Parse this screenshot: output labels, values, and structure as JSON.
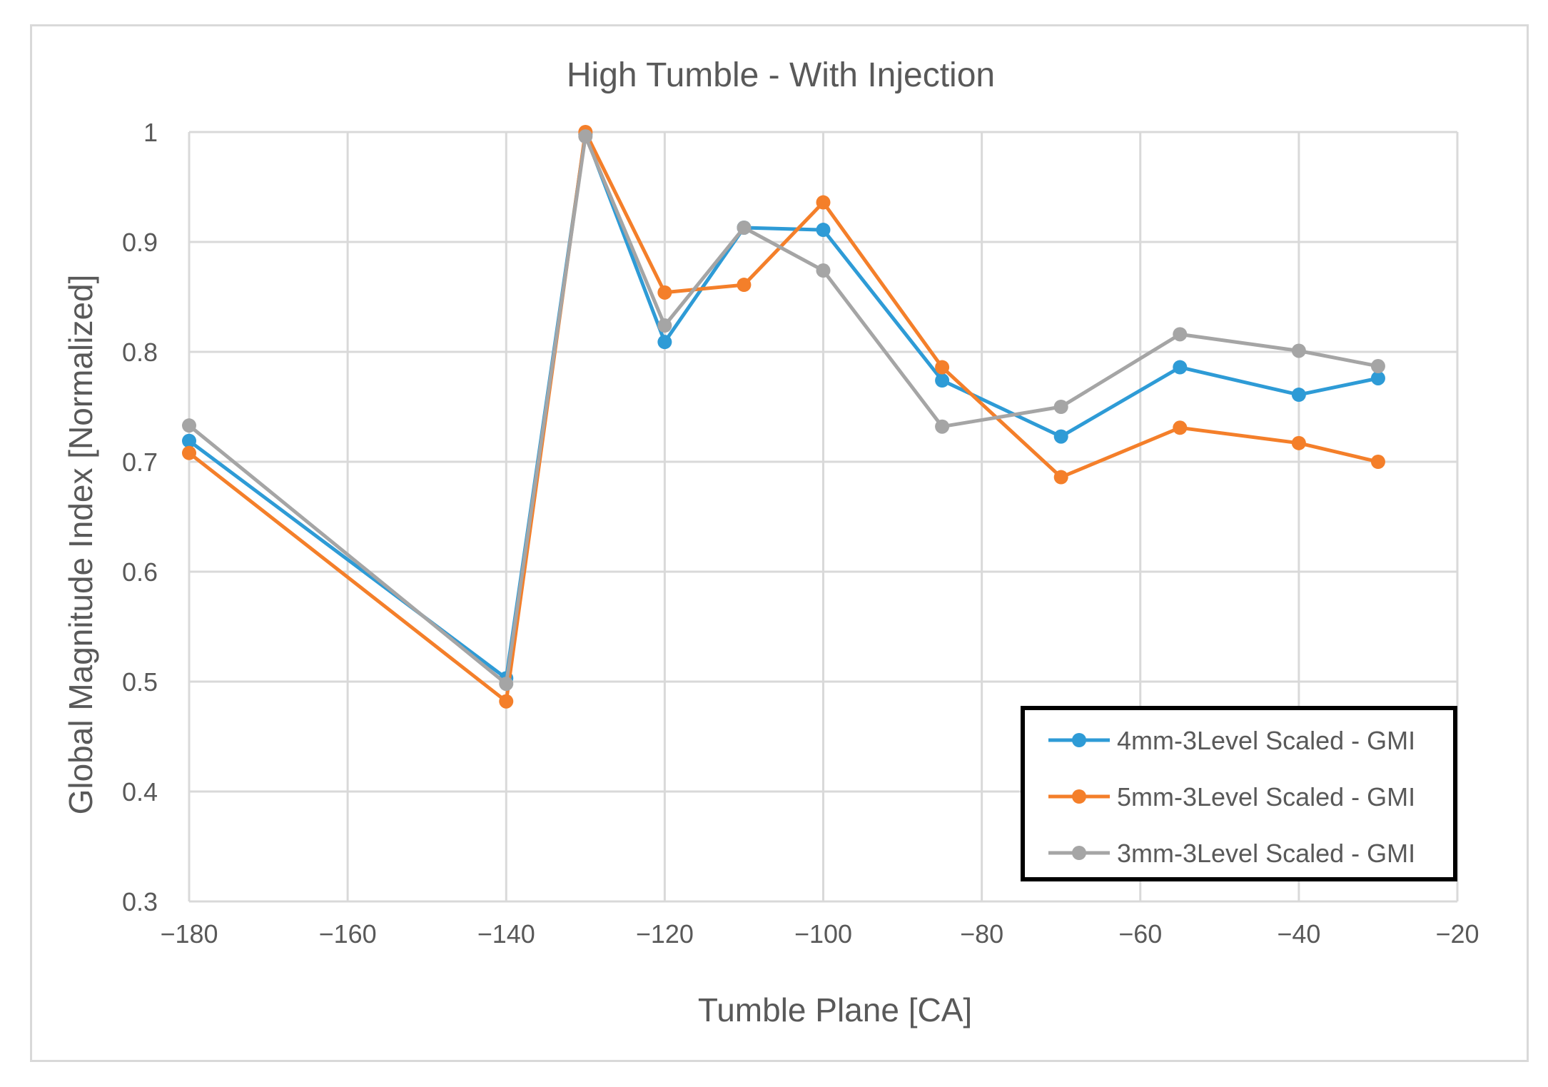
{
  "chart_data": {
    "type": "line",
    "title": "High Tumble - With Injection",
    "xlabel": "Tumble Plane [CA]",
    "ylabel": "Global Magnitude Index [Normalized]",
    "xlim": [
      -180,
      -20
    ],
    "ylim": [
      0.3,
      1.0
    ],
    "x_ticks": [
      -180,
      -160,
      -140,
      -120,
      -100,
      -80,
      -60,
      -40,
      -20
    ],
    "x_tick_labels": [
      "−180",
      "−160",
      "−140",
      "−120",
      "−100",
      "−80",
      "−60",
      "−40",
      "−20"
    ],
    "y_ticks": [
      0.3,
      0.4,
      0.5,
      0.6,
      0.7,
      0.8,
      0.9,
      1.0
    ],
    "y_tick_labels": [
      "0.3",
      "0.4",
      "0.5",
      "0.6",
      "0.7",
      "0.8",
      "0.9",
      "1"
    ],
    "grid": true,
    "legend_position": "bottom-right",
    "x": [
      -180,
      -140,
      -130,
      -120,
      -110,
      -100,
      -85,
      -70,
      -55,
      -40,
      -30
    ],
    "series": [
      {
        "name": "4mm-3Level Scaled - GMI",
        "color": "#2e9bd6",
        "values": [
          0.719,
          0.503,
          0.998,
          0.809,
          0.913,
          0.911,
          0.774,
          0.723,
          0.786,
          0.761,
          0.776
        ]
      },
      {
        "name": "5mm-3Level Scaled - GMI",
        "color": "#f47f2a",
        "values": [
          0.708,
          0.482,
          1.0,
          0.854,
          0.861,
          0.936,
          0.786,
          0.686,
          0.731,
          0.717,
          0.7
        ]
      },
      {
        "name": "3mm-3Level Scaled - GMI",
        "color": "#a5a5a5",
        "values": [
          0.733,
          0.498,
          0.996,
          0.824,
          0.913,
          0.874,
          0.732,
          0.75,
          0.816,
          0.801,
          0.787
        ]
      }
    ]
  }
}
